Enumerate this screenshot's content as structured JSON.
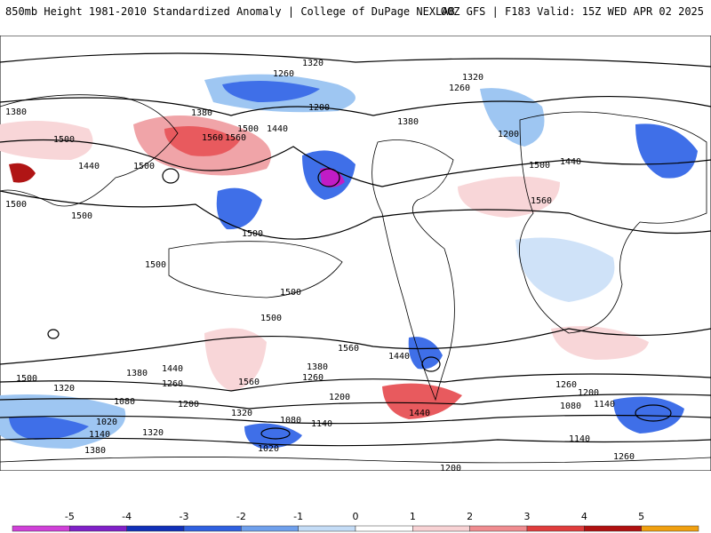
{
  "header": {
    "title_left": "850mb Height 1981-2010 Standardized Anomaly | College of DuPage NEXLAB",
    "title_right": "00Z GFS | F183 Valid: 15Z WED APR 02 2025"
  },
  "colors": {
    "neg_strong": "#1f3fd8",
    "neg_mid": "#3f6fe8",
    "neg_light": "#9ec6f2",
    "neg_faint": "#cfe2f8",
    "pos_faint": "#f8d6d8",
    "pos_light": "#f0a4a8",
    "pos_mid": "#e85a5e",
    "extreme_pos": "#b01515",
    "extreme_neg": "#c01cc6"
  },
  "contour_labels": [
    {
      "text": "1320"
    },
    {
      "text": "1260"
    },
    {
      "text": "1200"
    },
    {
      "text": "1380"
    },
    {
      "text": "1440"
    },
    {
      "text": "1500"
    },
    {
      "text": "1560"
    },
    {
      "text": "1320"
    },
    {
      "text": "1260"
    },
    {
      "text": "1200"
    },
    {
      "text": "1380"
    },
    {
      "text": "1440"
    },
    {
      "text": "1500"
    },
    {
      "text": "1560"
    },
    {
      "text": "1380"
    },
    {
      "text": "1440"
    },
    {
      "text": "1500"
    },
    {
      "text": "1560"
    },
    {
      "text": "1500"
    },
    {
      "text": "1500"
    },
    {
      "text": "1500"
    },
    {
      "text": "1500"
    },
    {
      "text": "1500"
    },
    {
      "text": "1500"
    },
    {
      "text": "1500"
    },
    {
      "text": "1560"
    },
    {
      "text": "1560"
    },
    {
      "text": "1500"
    },
    {
      "text": "1440"
    },
    {
      "text": "1380"
    },
    {
      "text": "1320"
    },
    {
      "text": "1260"
    },
    {
      "text": "1200"
    },
    {
      "text": "1140"
    },
    {
      "text": "1080"
    },
    {
      "text": "1020"
    },
    {
      "text": "1440"
    },
    {
      "text": "1380"
    },
    {
      "text": "1320"
    },
    {
      "text": "1260"
    },
    {
      "text": "1200"
    },
    {
      "text": "1140"
    },
    {
      "text": "1080"
    },
    {
      "text": "1020"
    },
    {
      "text": "1080"
    },
    {
      "text": "1140"
    },
    {
      "text": "1200"
    },
    {
      "text": "1260"
    },
    {
      "text": "1140"
    },
    {
      "text": "1200"
    },
    {
      "text": "1260"
    },
    {
      "text": "1440"
    },
    {
      "text": "1320"
    },
    {
      "text": "1380"
    }
  ],
  "colorbar": {
    "ticks": [
      "-5",
      "-4",
      "-3",
      "-2",
      "-1",
      "0",
      "1",
      "2",
      "3",
      "4",
      "5"
    ],
    "colors": [
      "#d040d8",
      "#8020c8",
      "#1030b8",
      "#2f60e0",
      "#6fa0ec",
      "#c4dcf6",
      "#ffffff",
      "#f8d2d4",
      "#f08c90",
      "#e03c3c",
      "#b01010",
      "#f0a010"
    ]
  }
}
